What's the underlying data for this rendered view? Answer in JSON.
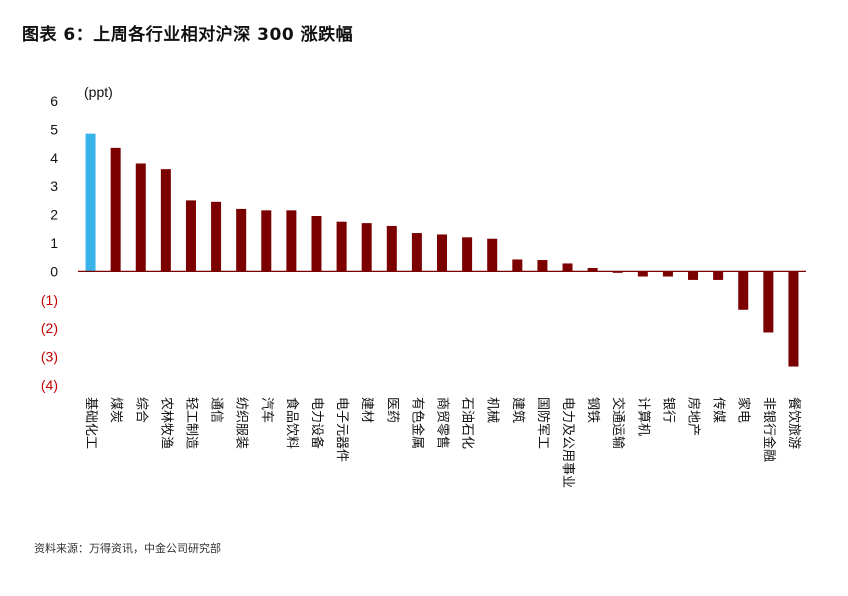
{
  "title": "图表 6：上周各行业相对沪深 300 涨跌幅",
  "source": "资料来源：万得资讯，中金公司研究部",
  "chart_data": {
    "type": "bar",
    "ylabel": "(ppt)",
    "ylim": [
      -4,
      6
    ],
    "yticks": [
      6,
      5,
      4,
      3,
      2,
      1,
      0,
      -1,
      -2,
      -3,
      -4
    ],
    "ytick_labels": [
      "6",
      "5",
      "4",
      "3",
      "2",
      "1",
      "0",
      "(1)",
      "(2)",
      "(3)",
      "(4)"
    ],
    "categories": [
      "基础化工",
      "煤炭",
      "综合",
      "农林牧渔",
      "轻工制造",
      "通信",
      "纺织服装",
      "汽车",
      "食品饮料",
      "电力设备",
      "电子元器件",
      "建材",
      "医药",
      "有色金属",
      "商贸零售",
      "石油石化",
      "机械",
      "建筑",
      "国防军工",
      "电力及公用事业",
      "钢铁",
      "交通运输",
      "计算机",
      "银行",
      "房地产",
      "传媒",
      "家电",
      "非银行金融",
      "餐饮旅游"
    ],
    "values": [
      4.85,
      4.35,
      3.8,
      3.6,
      2.5,
      2.45,
      2.2,
      2.15,
      2.15,
      1.95,
      1.75,
      1.7,
      1.6,
      1.35,
      1.3,
      1.2,
      1.15,
      0.42,
      0.4,
      0.28,
      0.12,
      -0.05,
      -0.18,
      -0.18,
      -0.3,
      -0.3,
      -1.35,
      -2.15,
      -3.35
    ],
    "highlight_index": 0,
    "colors": {
      "bar": "#7b0000",
      "highlight": "#3ab4e8",
      "negative_tick": "#c00000",
      "axis": "#7b0000"
    },
    "grid": false
  }
}
